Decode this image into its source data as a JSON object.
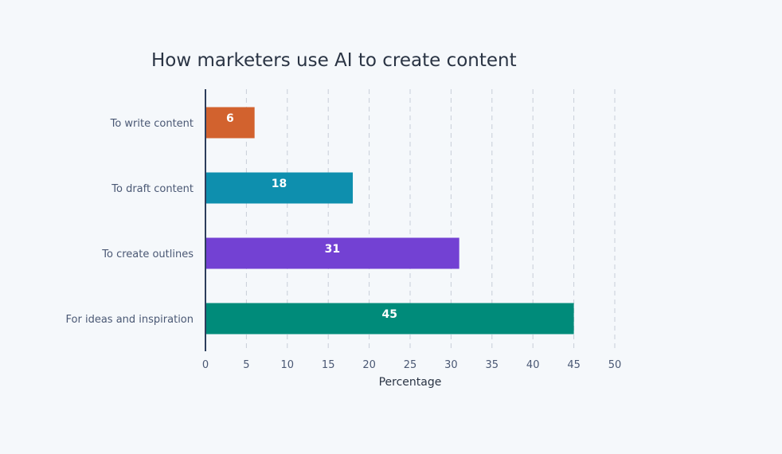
{
  "chart_data": {
    "type": "bar",
    "orientation": "horizontal",
    "title": "How marketers use AI to create content",
    "xlabel": "Percentage",
    "ylabel": "",
    "categories": [
      "To write content",
      "To draft content",
      "To create outlines",
      "For ideas and inspiration"
    ],
    "values": [
      6,
      18,
      31,
      45
    ],
    "data_labels": [
      "6",
      "18",
      "31",
      "45"
    ],
    "colors": [
      "#d2622e",
      "#0e8fae",
      "#7341d3",
      "#008b7a"
    ],
    "xlim": [
      0,
      50
    ],
    "ticks": [
      0,
      5,
      10,
      15,
      20,
      25,
      30,
      35,
      40,
      45,
      50
    ],
    "tick_labels": [
      "0",
      "5",
      "10",
      "15",
      "20",
      "25",
      "30",
      "35",
      "40",
      "45",
      "50"
    ],
    "grid": true,
    "legend": "none"
  }
}
